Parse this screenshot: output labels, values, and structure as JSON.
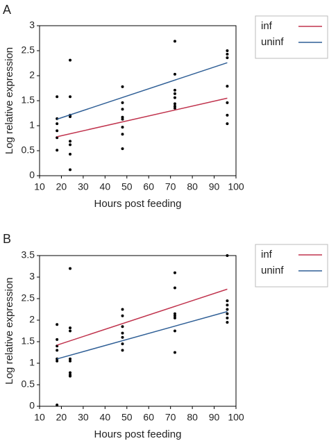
{
  "chart_data": [
    {
      "type": "scatter",
      "panel_label": "A",
      "xlabel": "Hours post feeding",
      "ylabel": "Log relative expression",
      "xlim": [
        10,
        100
      ],
      "xticks": [
        10,
        20,
        30,
        40,
        50,
        60,
        70,
        80,
        90,
        100
      ],
      "ylim": [
        0,
        3
      ],
      "yticks": [
        0,
        0.5,
        1,
        1.5,
        2,
        2.5,
        3
      ],
      "points": {
        "color": "#000000",
        "x": [
          18,
          18,
          18,
          18,
          18,
          18,
          24,
          24,
          24,
          24,
          24,
          24,
          24,
          24,
          48,
          48,
          48,
          48,
          48,
          48,
          48,
          48,
          72,
          72,
          72,
          72,
          72,
          72,
          72,
          72,
          96,
          96,
          96,
          96,
          96,
          96,
          96
        ],
        "y": [
          1.58,
          1.14,
          1.04,
          0.9,
          0.76,
          0.51,
          2.31,
          1.58,
          1.21,
          1.18,
          0.69,
          0.62,
          0.43,
          0.12,
          1.78,
          1.46,
          1.33,
          1.17,
          1.13,
          0.97,
          0.83,
          0.54,
          2.69,
          2.03,
          1.71,
          1.64,
          1.56,
          1.44,
          1.39,
          1.35,
          2.5,
          2.43,
          2.36,
          1.79,
          1.46,
          1.21,
          1.04
        ]
      },
      "series": [
        {
          "name": "inf",
          "color": "#c0334d",
          "x": [
            18,
            96
          ],
          "values": [
            0.78,
            1.55
          ]
        },
        {
          "name": "uninf",
          "color": "#2f5f96",
          "x": [
            18,
            96
          ],
          "values": [
            1.13,
            2.26
          ]
        }
      ]
    },
    {
      "type": "scatter",
      "panel_label": "B",
      "xlabel": "Hours post feeding",
      "ylabel": "Log relative expression",
      "xlim": [
        10,
        100
      ],
      "xticks": [
        10,
        20,
        30,
        40,
        50,
        60,
        70,
        80,
        90,
        100
      ],
      "ylim": [
        0,
        3.5
      ],
      "yticks": [
        0,
        0.5,
        1,
        1.5,
        2,
        2.5,
        3,
        3.5
      ],
      "points": {
        "color": "#000000",
        "x": [
          18,
          18,
          18,
          18,
          18,
          18,
          18,
          24,
          24,
          24,
          24,
          24,
          24,
          24,
          24,
          48,
          48,
          48,
          48,
          48,
          48,
          48,
          72,
          72,
          72,
          72,
          72,
          72,
          72,
          96,
          96,
          96,
          96,
          96,
          96,
          96
        ],
        "y": [
          1.9,
          1.55,
          1.4,
          1.3,
          1.1,
          1.05,
          0.03,
          3.2,
          1.82,
          1.75,
          1.1,
          1.05,
          0.78,
          0.73,
          0.7,
          2.25,
          2.1,
          1.85,
          1.7,
          1.6,
          1.45,
          1.3,
          3.1,
          2.75,
          2.15,
          2.1,
          2.05,
          1.75,
          1.25,
          3.5,
          2.45,
          2.35,
          2.25,
          2.15,
          2.05,
          1.95
        ]
      },
      "series": [
        {
          "name": "inf",
          "color": "#c0334d",
          "x": [
            18,
            96
          ],
          "values": [
            1.42,
            2.72
          ]
        },
        {
          "name": "uninf",
          "color": "#2f5f96",
          "x": [
            18,
            96
          ],
          "values": [
            1.1,
            2.2
          ]
        }
      ]
    }
  ]
}
